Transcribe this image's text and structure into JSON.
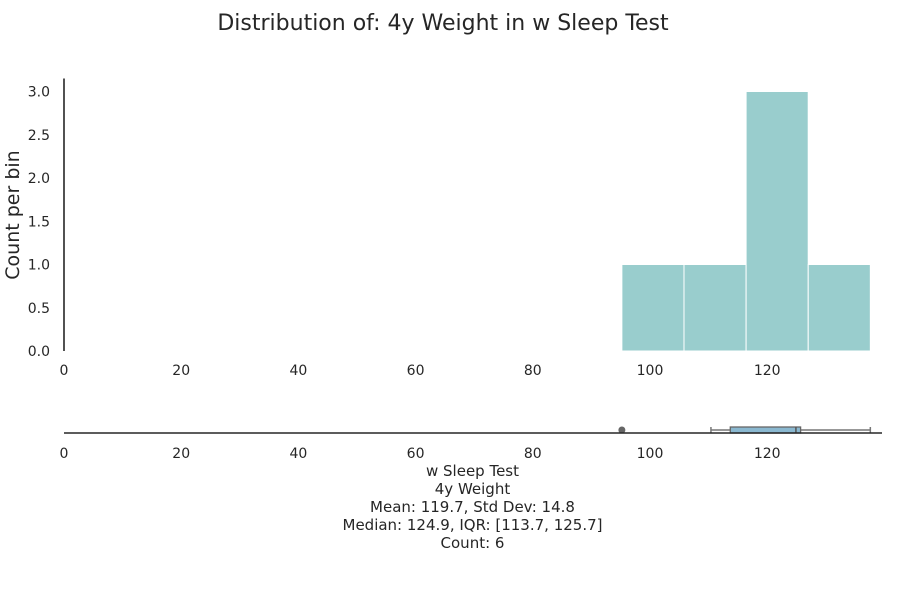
{
  "chart_data": [
    {
      "type": "bar",
      "title": "Distribution of: 4y Weight in w Sleep Test",
      "ylabel": "Count per bin",
      "xlim": [
        0,
        140
      ],
      "ylim": [
        0,
        3.15
      ],
      "xticks": [
        "0",
        "20",
        "40",
        "60",
        "80",
        "100",
        "120"
      ],
      "yticks": [
        "0.0",
        "0.5",
        "1.0",
        "1.5",
        "2.0",
        "2.5",
        "3.0"
      ],
      "bins": [
        {
          "x0": 95.2,
          "x1": 105.8,
          "count": 1
        },
        {
          "x0": 105.8,
          "x1": 116.4,
          "count": 1
        },
        {
          "x0": 116.4,
          "x1": 127.0,
          "count": 3
        },
        {
          "x0": 127.0,
          "x1": 137.6,
          "count": 1
        }
      ],
      "color": "#99cdcd",
      "grid": false
    },
    {
      "type": "box",
      "xlim": [
        0,
        140
      ],
      "xticks": [
        "0",
        "20",
        "40",
        "60",
        "80",
        "100",
        "120"
      ],
      "q1": 113.7,
      "median": 124.9,
      "q3": 125.7,
      "whisker_low": 110.4,
      "whisker_high": 137.6,
      "outliers": [
        95.2
      ],
      "color": "#8ab8d0"
    }
  ],
  "stats": {
    "group": "w Sleep Test",
    "variable": "4y Weight",
    "mean_line": "Mean: 119.7, Std Dev: 14.8",
    "median_line": "Median: 124.9, IQR: [113.7, 125.7]",
    "count_line": "Count: 6"
  }
}
